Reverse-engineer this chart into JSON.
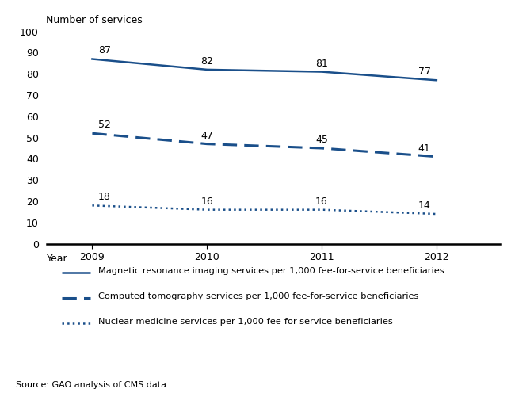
{
  "years": [
    2009,
    2010,
    2011,
    2012
  ],
  "mri": [
    87,
    82,
    81,
    77
  ],
  "ct": [
    52,
    47,
    45,
    41
  ],
  "nuclear": [
    18,
    16,
    16,
    14
  ],
  "line_color": "#1a4f8a",
  "ylabel": "Number of services",
  "xlabel": "Year",
  "ylim": [
    0,
    100
  ],
  "yticks": [
    0,
    10,
    20,
    30,
    40,
    50,
    60,
    70,
    80,
    90,
    100
  ],
  "legend_mri": "Magnetic resonance imaging services per 1,000 fee-for-service beneficiaries",
  "legend_ct": "Computed tomography services per 1,000 fee-for-service beneficiaries",
  "legend_nuclear": "Nuclear medicine services per 1,000 fee-for-service beneficiaries",
  "source": "Source: GAO analysis of CMS data.",
  "background_color": "#ffffff",
  "label_fontsize": 9,
  "tick_fontsize": 9,
  "annotation_fontsize": 9
}
